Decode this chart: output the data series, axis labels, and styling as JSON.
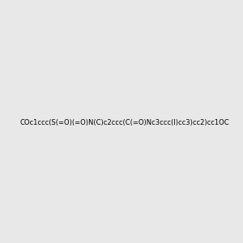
{
  "smiles": "COc1ccc(S(=O)(=O)N(C)c2ccc(C(=O)Nc3ccc(I)cc3)cc2)cc1OC",
  "image_size": 300,
  "background_color": "#e8e8e8"
}
